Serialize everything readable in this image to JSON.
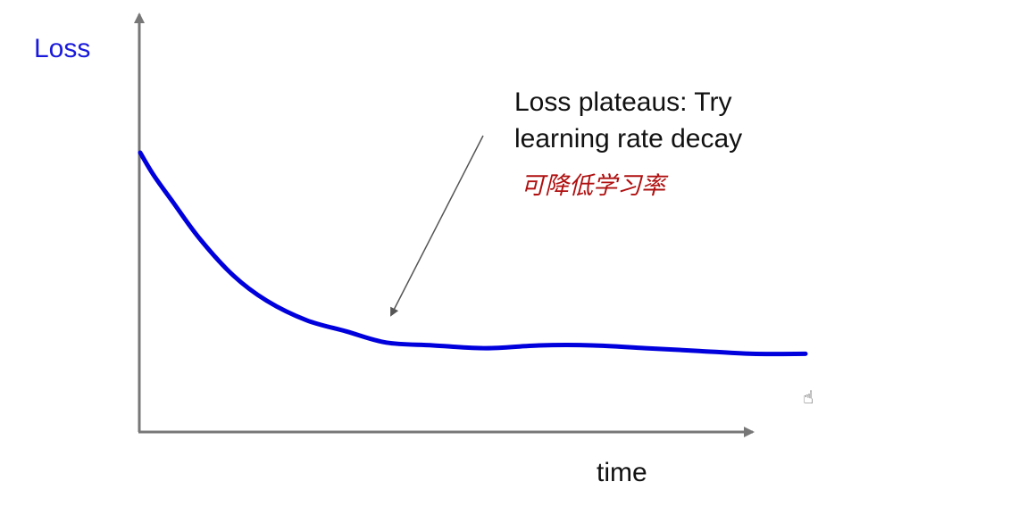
{
  "chart_data": {
    "type": "line",
    "title": "",
    "ylabel": "Loss",
    "xlabel": "time",
    "grid": false,
    "legend": "none",
    "series": [
      {
        "color": "#0000dd",
        "points": [
          [
            0.0,
            1.0
          ],
          [
            0.02,
            0.92
          ],
          [
            0.05,
            0.82
          ],
          [
            0.09,
            0.69
          ],
          [
            0.14,
            0.56
          ],
          [
            0.19,
            0.47
          ],
          [
            0.25,
            0.4
          ],
          [
            0.31,
            0.36
          ],
          [
            0.37,
            0.32
          ],
          [
            0.44,
            0.31
          ],
          [
            0.52,
            0.3
          ],
          [
            0.6,
            0.31
          ],
          [
            0.68,
            0.31
          ],
          [
            0.76,
            0.3
          ],
          [
            0.84,
            0.29
          ],
          [
            0.92,
            0.28
          ],
          [
            1.0,
            0.28
          ]
        ]
      }
    ],
    "annotations": [
      {
        "lines": [
          "Loss plateaus: Try",
          "learning rate decay"
        ],
        "target": [
          0.37,
          0.32
        ]
      },
      {
        "text": "可降低学习率",
        "color": "#b01010",
        "style": "handwritten"
      }
    ]
  },
  "colors": {
    "axis": "#777777",
    "ylabel": "#1a1adb",
    "arrow": "#555555"
  },
  "cursor_icon": "hand-pointer-icon"
}
